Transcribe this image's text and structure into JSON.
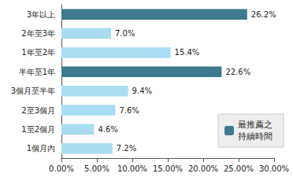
{
  "chart_data": {
    "type": "bar",
    "orientation": "horizontal",
    "categories": [
      "1個月內",
      "1至2個月",
      "2至3個月",
      "3個月至半年",
      "半年至1年",
      "1年至2年",
      "2年至3年",
      "3年以上"
    ],
    "series": [
      {
        "color": "#a9dcf2",
        "values": [
          7.2,
          4.6,
          7.6,
          9.4,
          null,
          15.4,
          7.0,
          null
        ],
        "value_labels": [
          "7.2%",
          "4.6%",
          "7.6%",
          "9.4%",
          null,
          "15.4%",
          "7.0%",
          null
        ]
      },
      {
        "name": "最推薦之持續時間",
        "color": "#3d7a8e",
        "values": [
          null,
          null,
          null,
          null,
          22.6,
          null,
          null,
          26.2
        ],
        "value_labels": [
          null,
          null,
          null,
          null,
          "22.6%",
          null,
          null,
          "26.2%"
        ]
      }
    ],
    "xlim": [
      0,
      30
    ],
    "xticks": [
      {
        "value": 0,
        "label": "0.00%"
      },
      {
        "value": 5,
        "label": "5.00%"
      },
      {
        "value": 10,
        "label": "10.00%"
      },
      {
        "value": 15,
        "label": "15.00%"
      },
      {
        "value": 20,
        "label": "20.00%"
      },
      {
        "value": 25,
        "label": "25.00%"
      },
      {
        "value": 30,
        "label": "30.00%"
      }
    ],
    "grid": false,
    "data_labels": true,
    "legend": "lower right"
  }
}
